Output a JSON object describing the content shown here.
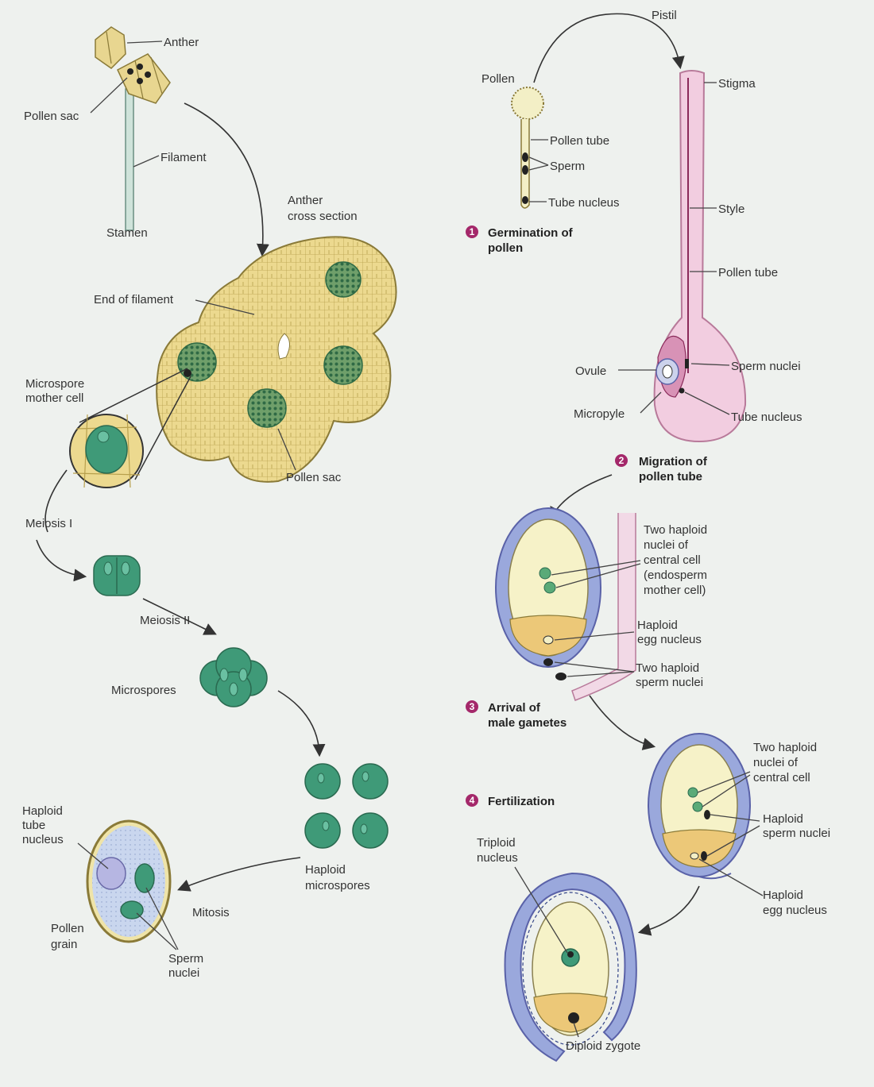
{
  "colors": {
    "background": "#eef1ee",
    "anther_yellow": "#e8d690",
    "cell_green": "#3f9a78",
    "pistil_pink": "#f2cde0",
    "integument_blue": "#9aa8dc",
    "embryo_sac": "#f6f2c8",
    "step_badge": "#a4286a"
  },
  "labels": {
    "anther": "Anther",
    "pollen_sac_top": "Pollen sac",
    "filament": "Filament",
    "stamen": "Stamen",
    "anther_cross_1": "Anther",
    "anther_cross_2": "cross section",
    "end_of_filament": "End of filament",
    "microspore_mother_1": "Microspore",
    "microspore_mother_2": "mother cell",
    "pollen_sac_bottom": "Pollen sac",
    "meiosis_1": "Meiosis I",
    "meiosis_2": "Meiosis II",
    "microspores": "Microspores",
    "haploid_microspores_1": "Haploid",
    "haploid_microspores_2": "microspores",
    "mitosis": "Mitosis",
    "haploid_tube_1": "Haploid",
    "haploid_tube_2": "tube",
    "haploid_tube_3": "nucleus",
    "pollen_grain_1": "Pollen",
    "pollen_grain_2": "grain",
    "sperm_nuclei_l_1": "Sperm",
    "sperm_nuclei_l_2": "nuclei",
    "pistil": "Pistil",
    "pollen": "Pollen",
    "stigma": "Stigma",
    "pollen_tube_small": "Pollen tube",
    "sperm": "Sperm",
    "tube_nucleus_small": "Tube nucleus",
    "style": "Style",
    "pollen_tube_pistil": "Pollen tube",
    "ovule": "Ovule",
    "sperm_nuclei_pistil": "Sperm nuclei",
    "micropyle": "Micropyle",
    "tube_nucleus_pistil": "Tube nucleus",
    "two_haploid_central_1": "Two haploid",
    "two_haploid_central_2": "nuclei of",
    "two_haploid_central_3": "central cell",
    "two_haploid_central_4": "(endosperm",
    "two_haploid_central_5": "mother cell)",
    "haploid_egg_1": "Haploid",
    "haploid_egg_2": "egg nucleus",
    "two_haploid_sperm_1": "Two haploid",
    "two_haploid_sperm_2": "sperm nuclei",
    "two_haploid_c2_1": "Two haploid",
    "two_haploid_c2_2": "nuclei of",
    "two_haploid_c2_3": "central cell",
    "haploid_sperm_1": "Haploid",
    "haploid_sperm_2": "sperm nuclei",
    "haploid_egg_b_1": "Haploid",
    "haploid_egg_b_2": "egg nucleus",
    "triploid_1": "Triploid",
    "triploid_2": "nucleus",
    "diploid_zygote": "Diploid zygote"
  },
  "steps": [
    {
      "number": "1",
      "line1": "Germination of",
      "line2": "pollen"
    },
    {
      "number": "2",
      "line1": "Migration of",
      "line2": "pollen tube"
    },
    {
      "number": "3",
      "line1": "Arrival of",
      "line2": "male gametes"
    },
    {
      "number": "4",
      "line1": "Fertilization",
      "line2": ""
    }
  ]
}
